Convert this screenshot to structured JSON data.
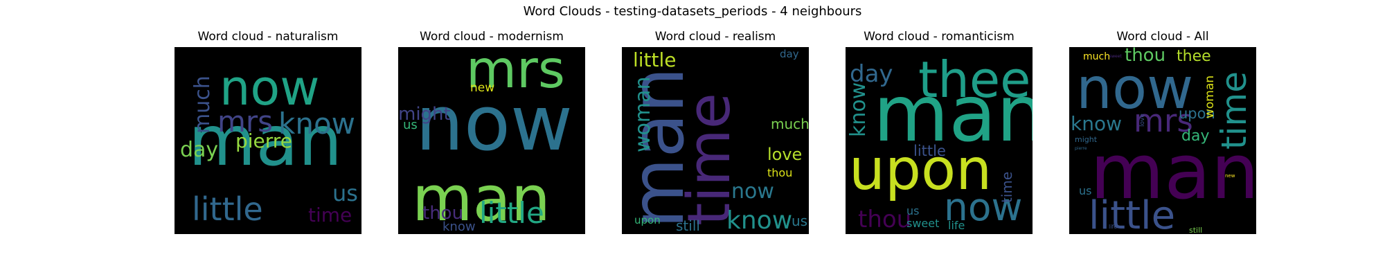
{
  "figure_title": "Word Clouds - testing-datasets_periods - 4 neighbours",
  "chart_data": [
    {
      "type": "wordcloud",
      "title": "Word cloud - naturalism",
      "words": [
        {
          "text": "man",
          "color": "#21918c"
        },
        {
          "text": "now",
          "color": "#20a386"
        },
        {
          "text": "know",
          "color": "#2c728e"
        },
        {
          "text": "mrs",
          "color": "#414487"
        },
        {
          "text": "little",
          "color": "#31688e"
        },
        {
          "text": "pierre",
          "color": "#95d840"
        },
        {
          "text": "much",
          "color": "#3b528b"
        },
        {
          "text": "day",
          "color": "#7ad151"
        },
        {
          "text": "us",
          "color": "#2c728e"
        },
        {
          "text": "time",
          "color": "#440154"
        }
      ]
    },
    {
      "type": "wordcloud",
      "title": "Word cloud - modernism",
      "words": [
        {
          "text": "now",
          "color": "#2c728e"
        },
        {
          "text": "man",
          "color": "#7ad151"
        },
        {
          "text": "mrs",
          "color": "#5ec962"
        },
        {
          "text": "little",
          "color": "#22a884"
        },
        {
          "text": "might",
          "color": "#414487"
        },
        {
          "text": "new",
          "color": "#dde318"
        },
        {
          "text": "us",
          "color": "#35b779"
        },
        {
          "text": "thou",
          "color": "#472c7a"
        },
        {
          "text": "know",
          "color": "#3b528b"
        }
      ]
    },
    {
      "type": "wordcloud",
      "title": "Word cloud - realism",
      "words": [
        {
          "text": "man",
          "color": "#3b528b"
        },
        {
          "text": "time",
          "color": "#482878"
        },
        {
          "text": "little",
          "color": "#bddf26"
        },
        {
          "text": "woman",
          "color": "#21918c"
        },
        {
          "text": "know",
          "color": "#21918c"
        },
        {
          "text": "now",
          "color": "#2a788e"
        },
        {
          "text": "love",
          "color": "#b5de2b"
        },
        {
          "text": "much",
          "color": "#7ad151"
        },
        {
          "text": "thou",
          "color": "#dde318"
        },
        {
          "text": "day",
          "color": "#31688e"
        },
        {
          "text": "still",
          "color": "#2c728e"
        },
        {
          "text": "us",
          "color": "#2a788e"
        },
        {
          "text": "upon",
          "color": "#35b779"
        }
      ]
    },
    {
      "type": "wordcloud",
      "title": "Word cloud - romanticism",
      "words": [
        {
          "text": "man",
          "color": "#20a386"
        },
        {
          "text": "upon",
          "color": "#c8e020"
        },
        {
          "text": "thee",
          "color": "#1f9e89"
        },
        {
          "text": "now",
          "color": "#2c728e"
        },
        {
          "text": "thou",
          "color": "#440154"
        },
        {
          "text": "day",
          "color": "#31688e"
        },
        {
          "text": "know",
          "color": "#21918c"
        },
        {
          "text": "little",
          "color": "#3b528b"
        },
        {
          "text": "time",
          "color": "#3b528b"
        },
        {
          "text": "sweet",
          "color": "#21918c"
        },
        {
          "text": "us",
          "color": "#2c728e"
        },
        {
          "text": "life",
          "color": "#21918c"
        }
      ]
    },
    {
      "type": "wordcloud",
      "title": "Word cloud - All",
      "words": [
        {
          "text": "man",
          "color": "#440154"
        },
        {
          "text": "now",
          "color": "#31688e"
        },
        {
          "text": "little",
          "color": "#3b528b"
        },
        {
          "text": "time",
          "color": "#21918c"
        },
        {
          "text": "mrs",
          "color": "#482878"
        },
        {
          "text": "know",
          "color": "#2a788e"
        },
        {
          "text": "thou",
          "color": "#5ec962"
        },
        {
          "text": "thee",
          "color": "#b5de2b"
        },
        {
          "text": "upon",
          "color": "#2c728e"
        },
        {
          "text": "day",
          "color": "#35b779"
        },
        {
          "text": "woman",
          "color": "#dde318"
        },
        {
          "text": "much",
          "color": "#fde725"
        },
        {
          "text": "us",
          "color": "#2c728e"
        },
        {
          "text": "might",
          "color": "#31688e"
        },
        {
          "text": "love",
          "color": "#3b528b"
        },
        {
          "text": "sweet",
          "color": "#482878"
        },
        {
          "text": "pierre",
          "color": "#31688e"
        },
        {
          "text": "new",
          "color": "#fde725"
        },
        {
          "text": "life",
          "color": "#3b528b"
        },
        {
          "text": "still",
          "color": "#7ad151"
        }
      ]
    }
  ]
}
